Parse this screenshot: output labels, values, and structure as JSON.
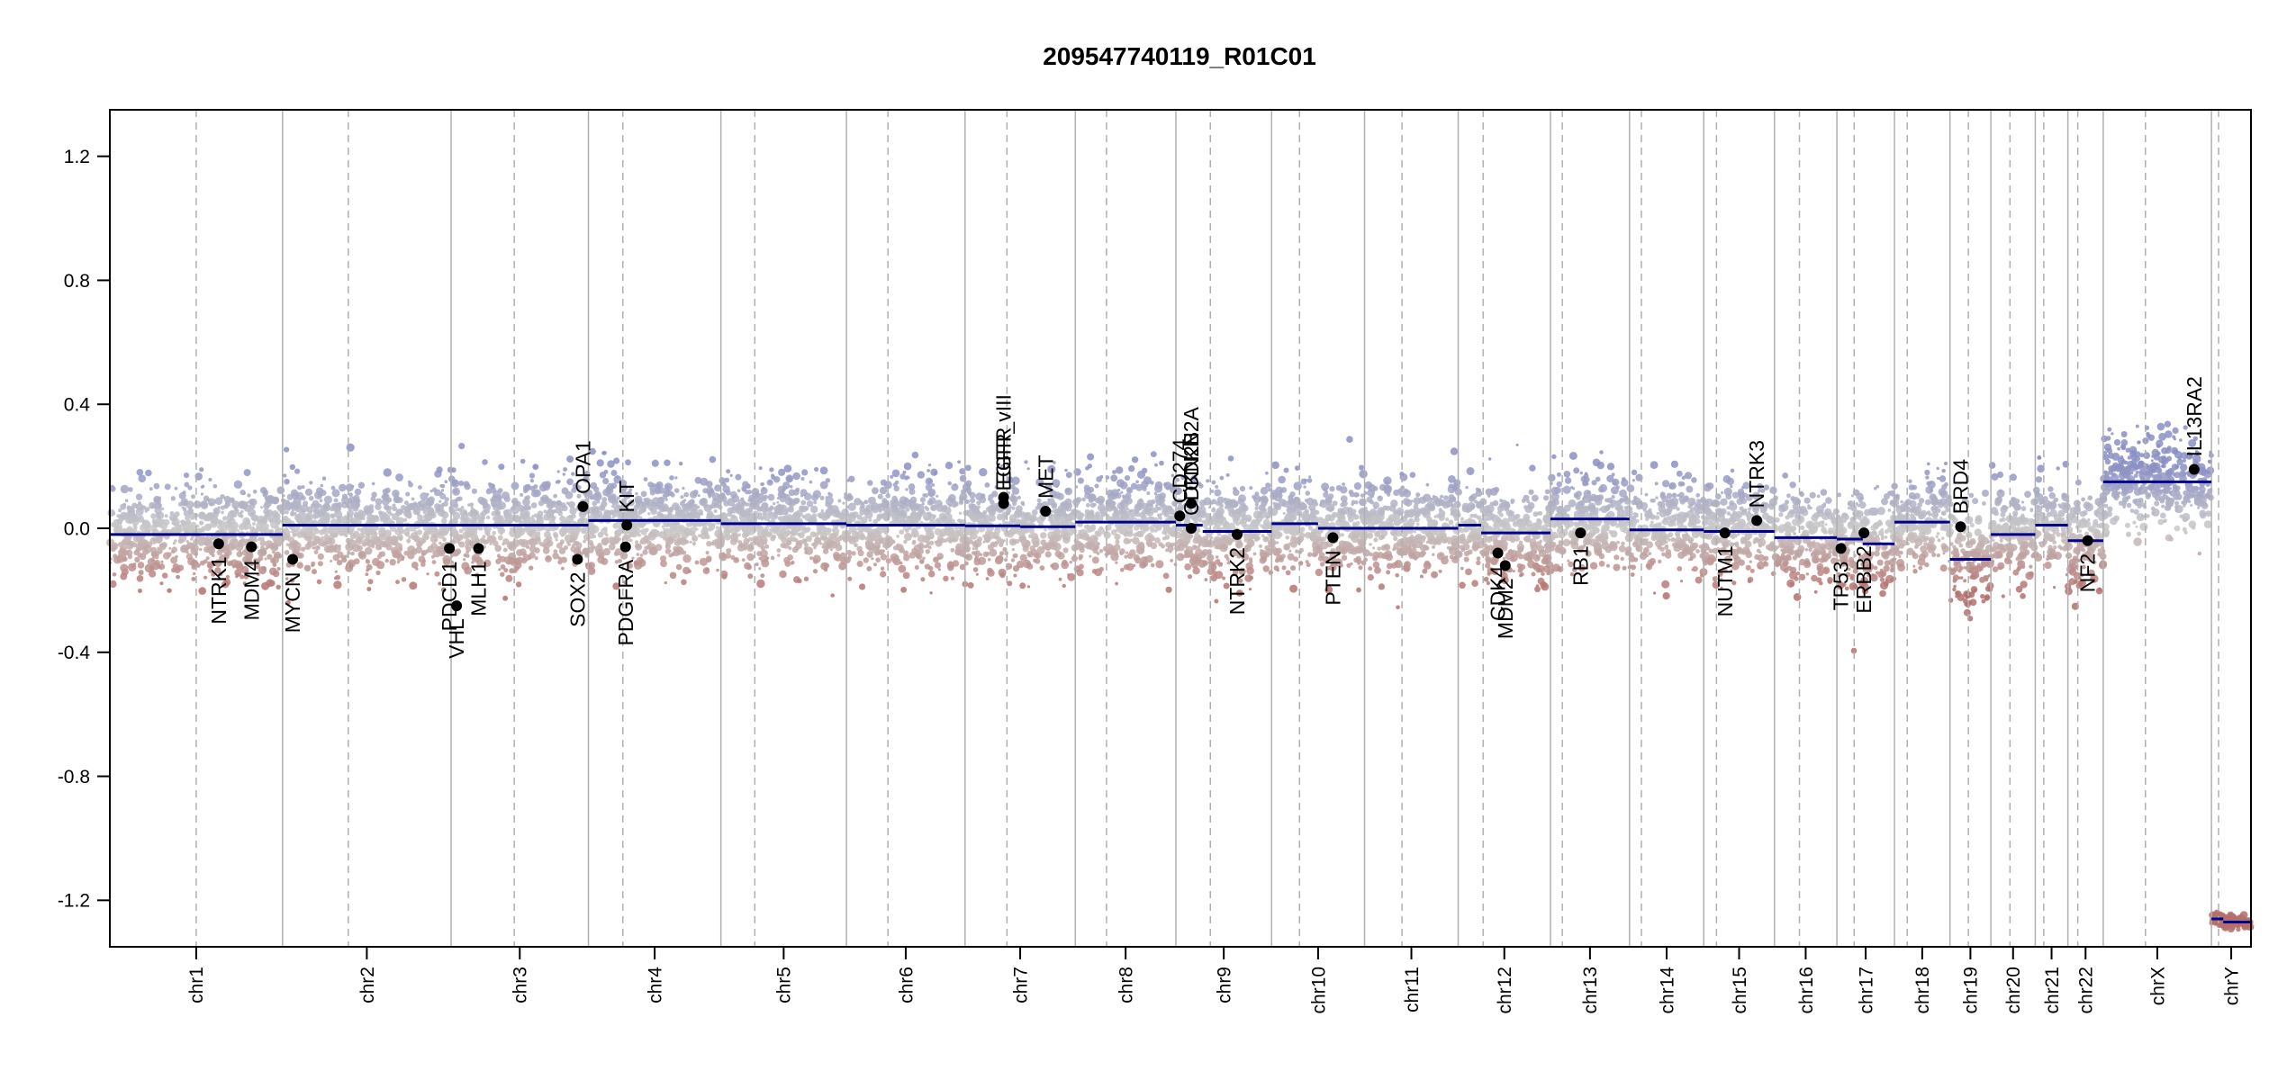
{
  "chart_data": {
    "type": "scatter",
    "title": "209547740119_R01C01",
    "xlabel": "",
    "ylabel": "",
    "ylim": [
      -1.35,
      1.35
    ],
    "y_ticks": [
      "1.2",
      "0.8",
      "0.4",
      "0.0",
      "-0.4",
      "-0.8",
      "-1.2"
    ],
    "y_tick_values": [
      1.2,
      0.8,
      0.4,
      0.0,
      -0.4,
      -0.8,
      -1.2
    ],
    "grid": false,
    "colors": {
      "gain": "#8b8fc4",
      "loss": "#b5706c",
      "neutral": "#c8c8c8",
      "segment": "#00008b",
      "gene_point": "#000000",
      "boundary": "#b0b0b0"
    },
    "chromosomes": [
      {
        "name": "chr1",
        "length": 249,
        "centromere": 0.5
      },
      {
        "name": "chr2",
        "length": 243,
        "centromere": 0.39
      },
      {
        "name": "chr3",
        "length": 198,
        "centromere": 0.46
      },
      {
        "name": "chr4",
        "length": 191,
        "centromere": 0.26
      },
      {
        "name": "chr5",
        "length": 181,
        "centromere": 0.27
      },
      {
        "name": "chr6",
        "length": 171,
        "centromere": 0.35
      },
      {
        "name": "chr7",
        "length": 159,
        "centromere": 0.38
      },
      {
        "name": "chr8",
        "length": 145,
        "centromere": 0.31
      },
      {
        "name": "chr9",
        "length": 138,
        "centromere": 0.36
      },
      {
        "name": "chr10",
        "length": 134,
        "centromere": 0.3
      },
      {
        "name": "chr11",
        "length": 135,
        "centromere": 0.4
      },
      {
        "name": "chr12",
        "length": 133,
        "centromere": 0.27
      },
      {
        "name": "chr13",
        "length": 114,
        "centromere": 0.15
      },
      {
        "name": "chr14",
        "length": 107,
        "centromere": 0.16
      },
      {
        "name": "chr15",
        "length": 102,
        "centromere": 0.18
      },
      {
        "name": "chr16",
        "length": 90,
        "centromere": 0.4
      },
      {
        "name": "chr17",
        "length": 83,
        "centromere": 0.3
      },
      {
        "name": "chr18",
        "length": 80,
        "centromere": 0.23
      },
      {
        "name": "chr19",
        "length": 59,
        "centromere": 0.45
      },
      {
        "name": "chr20",
        "length": 64,
        "centromere": 0.43
      },
      {
        "name": "chr21",
        "length": 47,
        "centromere": 0.26
      },
      {
        "name": "chr22",
        "length": 51,
        "centromere": 0.28
      },
      {
        "name": "chrX",
        "length": 156,
        "centromere": 0.39
      },
      {
        "name": "chrY",
        "length": 57,
        "centromere": 0.18
      }
    ],
    "segments": [
      {
        "chr": "chr1",
        "start": 0.0,
        "end": 1.0,
        "value": -0.02
      },
      {
        "chr": "chr2",
        "start": 0.0,
        "end": 1.0,
        "value": 0.01
      },
      {
        "chr": "chr3",
        "start": 0.0,
        "end": 1.0,
        "value": 0.01
      },
      {
        "chr": "chr4",
        "start": 0.0,
        "end": 1.0,
        "value": 0.025
      },
      {
        "chr": "chr5",
        "start": 0.0,
        "end": 1.0,
        "value": 0.015
      },
      {
        "chr": "chr6",
        "start": 0.0,
        "end": 1.0,
        "value": 0.01
      },
      {
        "chr": "chr7",
        "start": 0.0,
        "end": 0.5,
        "value": 0.008
      },
      {
        "chr": "chr7",
        "start": 0.5,
        "end": 1.0,
        "value": 0.005
      },
      {
        "chr": "chr8",
        "start": 0.0,
        "end": 1.0,
        "value": 0.02
      },
      {
        "chr": "chr9",
        "start": 0.0,
        "end": 0.28,
        "value": 0.01
      },
      {
        "chr": "chr9",
        "start": 0.28,
        "end": 1.0,
        "value": -0.01
      },
      {
        "chr": "chr10",
        "start": 0.0,
        "end": 0.5,
        "value": 0.015
      },
      {
        "chr": "chr10",
        "start": 0.5,
        "end": 1.0,
        "value": 0.0
      },
      {
        "chr": "chr11",
        "start": 0.0,
        "end": 1.0,
        "value": 0.0
      },
      {
        "chr": "chr12",
        "start": 0.0,
        "end": 0.25,
        "value": 0.01
      },
      {
        "chr": "chr12",
        "start": 0.25,
        "end": 1.0,
        "value": -0.015
      },
      {
        "chr": "chr13",
        "start": 0.0,
        "end": 1.0,
        "value": 0.03
      },
      {
        "chr": "chr14",
        "start": 0.0,
        "end": 1.0,
        "value": -0.005
      },
      {
        "chr": "chr15",
        "start": 0.0,
        "end": 1.0,
        "value": -0.01
      },
      {
        "chr": "chr16",
        "start": 0.0,
        "end": 1.0,
        "value": -0.03
      },
      {
        "chr": "chr17",
        "start": 0.0,
        "end": 0.45,
        "value": -0.035
      },
      {
        "chr": "chr17",
        "start": 0.45,
        "end": 1.0,
        "value": -0.05
      },
      {
        "chr": "chr18",
        "start": 0.0,
        "end": 1.0,
        "value": 0.02
      },
      {
        "chr": "chr19",
        "start": 0.0,
        "end": 1.0,
        "value": -0.1
      },
      {
        "chr": "chr20",
        "start": 0.0,
        "end": 1.0,
        "value": -0.02
      },
      {
        "chr": "chr21",
        "start": 0.0,
        "end": 1.0,
        "value": 0.01
      },
      {
        "chr": "chr22",
        "start": 0.0,
        "end": 1.0,
        "value": -0.04
      },
      {
        "chr": "chrX",
        "start": 0.0,
        "end": 1.0,
        "value": 0.15
      },
      {
        "chr": "chrY",
        "start": 0.0,
        "end": 0.3,
        "value": -1.26
      },
      {
        "chr": "chrY",
        "start": 0.3,
        "end": 1.0,
        "value": -1.27
      }
    ],
    "genes": [
      {
        "name": "NTRK1",
        "chr": "chr1",
        "pos": 0.63,
        "value": -0.05
      },
      {
        "name": "MDM4",
        "chr": "chr1",
        "pos": 0.82,
        "value": -0.06
      },
      {
        "name": "MYCN",
        "chr": "chr2",
        "pos": 0.06,
        "value": -0.1
      },
      {
        "name": "PDCD1",
        "chr": "chr2",
        "pos": 0.99,
        "value": -0.065
      },
      {
        "name": "VHL",
        "chr": "chr3",
        "pos": 0.04,
        "value": -0.25
      },
      {
        "name": "MLH1",
        "chr": "chr3",
        "pos": 0.2,
        "value": -0.065
      },
      {
        "name": "SOX2",
        "chr": "chr3",
        "pos": 0.92,
        "value": -0.1
      },
      {
        "name": "OPA1",
        "chr": "chr3",
        "pos": 0.96,
        "value": 0.07
      },
      {
        "name": "PDGFRA",
        "chr": "chr4",
        "pos": 0.28,
        "value": -0.06
      },
      {
        "name": "KIT",
        "chr": "chr4",
        "pos": 0.29,
        "value": 0.01
      },
      {
        "name": "EGFR",
        "chr": "chr7",
        "pos": 0.35,
        "value": 0.1
      },
      {
        "name": "EGFR_vIII",
        "chr": "chr7",
        "pos": 0.35,
        "value": 0.08
      },
      {
        "name": "MET",
        "chr": "chr7",
        "pos": 0.73,
        "value": 0.055
      },
      {
        "name": "CD274",
        "chr": "chr9",
        "pos": 0.04,
        "value": 0.04
      },
      {
        "name": "CDKN2A",
        "chr": "chr9",
        "pos": 0.16,
        "value": 0.08
      },
      {
        "name": "CDKN2B",
        "chr": "chr9",
        "pos": 0.16,
        "value": 0.0
      },
      {
        "name": "NTRK2",
        "chr": "chr9",
        "pos": 0.64,
        "value": -0.02
      },
      {
        "name": "PTEN",
        "chr": "chr10",
        "pos": 0.66,
        "value": -0.03
      },
      {
        "name": "CDK4",
        "chr": "chr12",
        "pos": 0.43,
        "value": -0.08
      },
      {
        "name": "MDM2",
        "chr": "chr12",
        "pos": 0.51,
        "value": -0.12
      },
      {
        "name": "RB1",
        "chr": "chr13",
        "pos": 0.38,
        "value": -0.015
      },
      {
        "name": "NUTM1",
        "chr": "chr15",
        "pos": 0.3,
        "value": -0.015
      },
      {
        "name": "NTRK3",
        "chr": "chr15",
        "pos": 0.75,
        "value": 0.025
      },
      {
        "name": "TP53",
        "chr": "chr17",
        "pos": 0.07,
        "value": -0.065
      },
      {
        "name": "ERBB2",
        "chr": "chr17",
        "pos": 0.47,
        "value": -0.015
      },
      {
        "name": "BRD4",
        "chr": "chr19",
        "pos": 0.26,
        "value": 0.005
      },
      {
        "name": "NF2",
        "chr": "chr22",
        "pos": 0.56,
        "value": -0.04
      },
      {
        "name": "IL13RA2",
        "chr": "chrX",
        "pos": 0.84,
        "value": 0.19
      }
    ]
  }
}
